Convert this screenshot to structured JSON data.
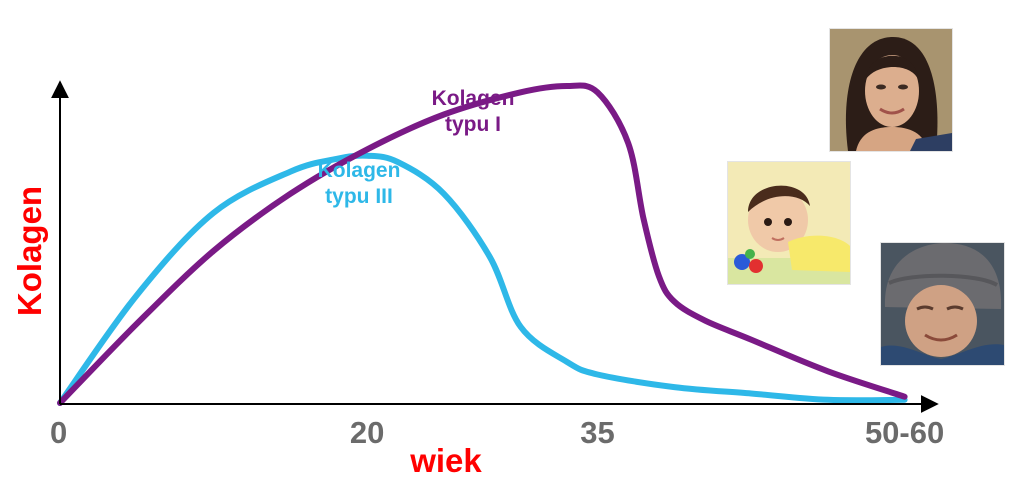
{
  "colors": {
    "type1": "#7a1a86",
    "type3": "#2eb8e8",
    "axis": "#000000",
    "axis_label": "#ff0000",
    "tick_label": "#6b6b6b"
  },
  "chart_data": {
    "type": "line",
    "xlabel": "wiek",
    "ylabel": "Kolagen",
    "x_ticks": [
      "0",
      "20",
      "35",
      "50-60"
    ],
    "x_tick_values": [
      0,
      20,
      35,
      55
    ],
    "xlim": [
      0,
      56
    ],
    "ylim": [
      0,
      1
    ],
    "y_ticks": [],
    "grid": false,
    "legend": "inline labels near curves",
    "series": [
      {
        "name": "Kolagen typu I",
        "label_lines": [
          "Kolagen",
          "typu I"
        ],
        "color": "#7a1a86",
        "x": [
          0,
          5,
          10,
          15,
          20,
          25,
          30,
          33,
          35,
          37,
          38,
          39,
          40,
          42,
          45,
          50,
          55
        ],
        "y": [
          0,
          0.25,
          0.48,
          0.66,
          0.8,
          0.91,
          0.98,
          1.0,
          0.98,
          0.82,
          0.58,
          0.4,
          0.32,
          0.26,
          0.2,
          0.1,
          0.02
        ]
      },
      {
        "name": "Kolagen typu III",
        "label_lines": [
          "Kolagen",
          "typu III"
        ],
        "color": "#2eb8e8",
        "x": [
          0,
          5,
          10,
          15,
          18,
          20,
          22,
          25,
          28,
          30,
          33,
          35,
          40,
          45,
          50,
          55
        ],
        "y": [
          0,
          0.34,
          0.6,
          0.73,
          0.77,
          0.78,
          0.76,
          0.66,
          0.46,
          0.24,
          0.13,
          0.09,
          0.05,
          0.03,
          0.01,
          0.01
        ]
      }
    ]
  }
}
